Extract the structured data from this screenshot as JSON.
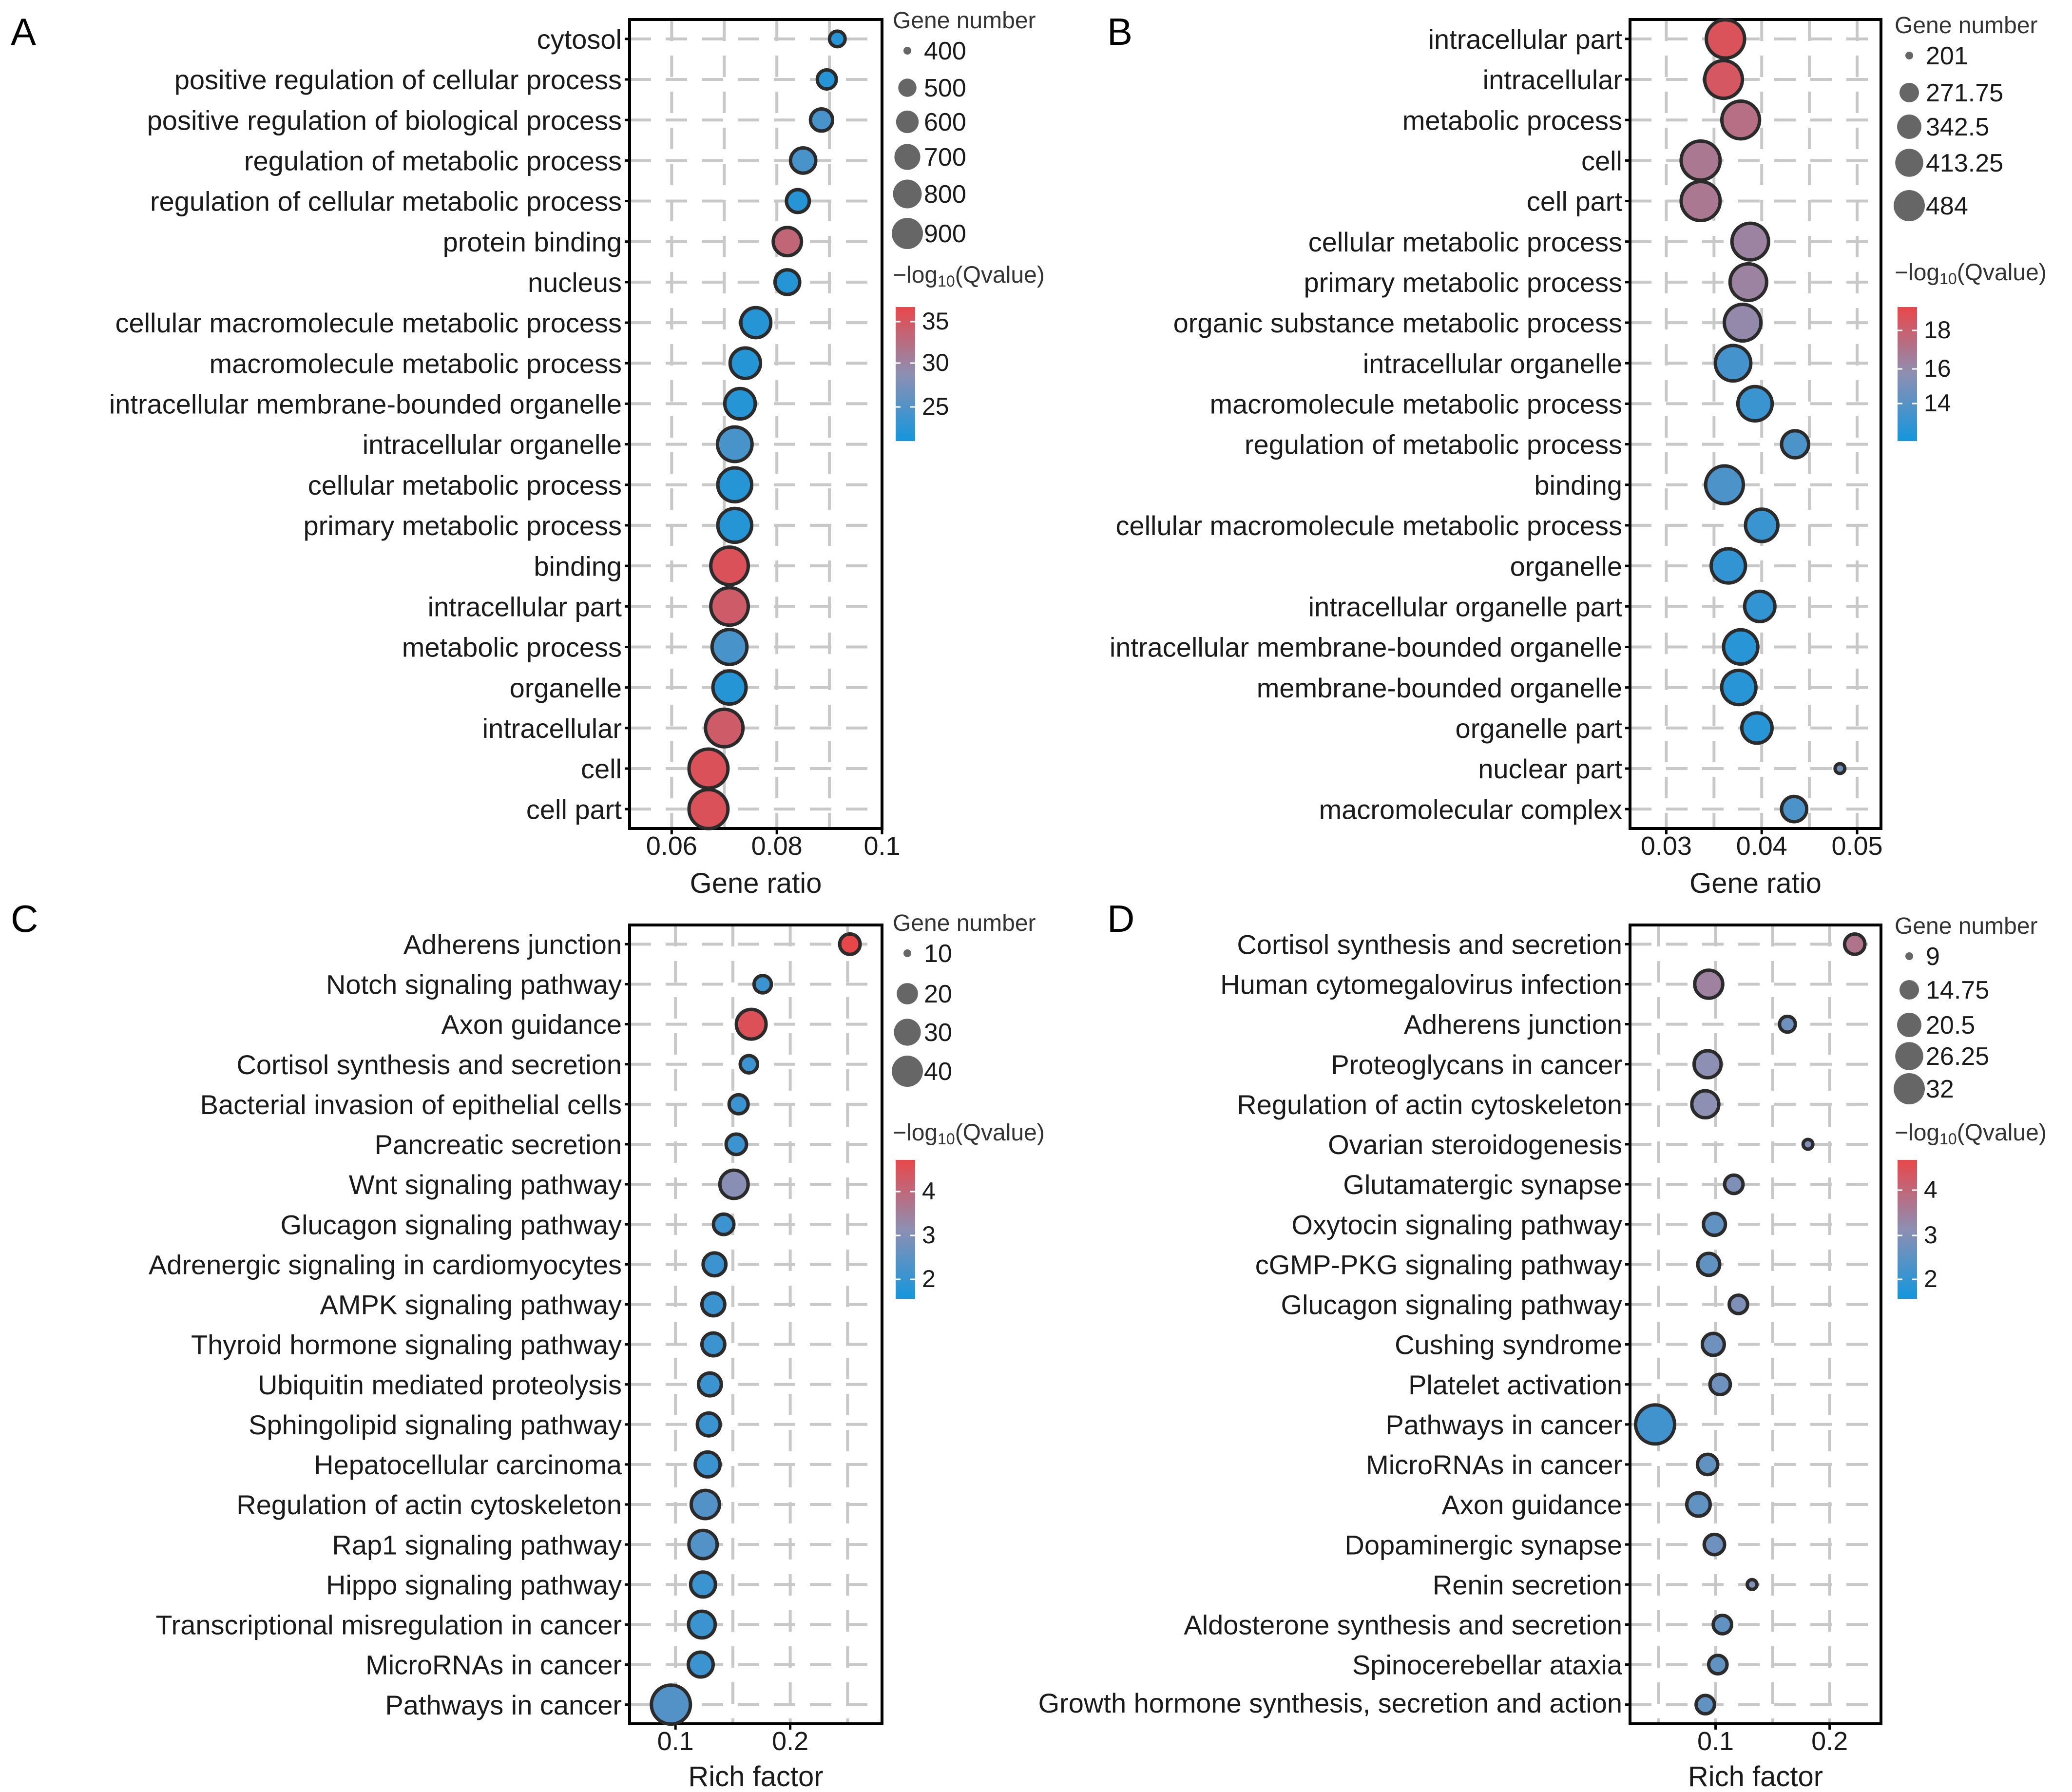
{
  "colors": {
    "low": "#1496dc",
    "mid": "#8d8fb3",
    "high": "#e8474a",
    "legend_dot": "#666666",
    "outline": "#2b2b2b"
  },
  "chart_data": [
    {
      "panel": "A",
      "type": "scatter",
      "xlabel": "Gene ratio",
      "xlim": [
        0.052,
        0.1
      ],
      "xticks": [
        0.06,
        0.08,
        0.1
      ],
      "xtick_labels": [
        "0.06",
        "0.08",
        "0.1"
      ],
      "size_legend_title": "Gene number",
      "size_legend": [
        400,
        500,
        600,
        700,
        800,
        900
      ],
      "size_range": [
        400,
        900
      ],
      "color_legend_title_prefix": "−log",
      "color_legend_title_sub": "10",
      "color_legend_title_suffix": "(Qvalue)",
      "color_range": [
        22,
        36
      ],
      "color_ticks": [
        35,
        30,
        25
      ],
      "categories": [
        "cytosol",
        "positive regulation of cellular process",
        "positive regulation of biological process",
        "regulation of metabolic process",
        "regulation of cellular metabolic process",
        "protein binding",
        "nucleus",
        "cellular macromolecule metabolic process",
        "macromolecule metabolic process",
        "intracellular membrane-bounded organelle",
        "intracellular organelle",
        "cellular metabolic process",
        "primary metabolic process",
        "binding",
        "intracellular part",
        "metabolic process",
        "organelle",
        "intracellular",
        "cell",
        "cell part"
      ],
      "x": [
        0.0915,
        0.0895,
        0.0885,
        0.085,
        0.084,
        0.082,
        0.082,
        0.076,
        0.074,
        0.073,
        0.072,
        0.072,
        0.072,
        0.071,
        0.071,
        0.071,
        0.071,
        0.07,
        0.067,
        0.067
      ],
      "size": [
        420,
        450,
        490,
        540,
        500,
        600,
        530,
        640,
        650,
        650,
        760,
        740,
        740,
        850,
        850,
        770,
        720,
        850,
        940,
        940
      ],
      "qvalue": [
        23,
        23,
        25,
        25,
        23,
        33,
        23,
        23,
        23,
        23,
        25,
        23,
        23,
        35,
        34,
        25,
        23,
        34,
        35,
        35
      ]
    },
    {
      "panel": "B",
      "type": "scatter",
      "xlabel": "Gene ratio",
      "xlim": [
        0.0262,
        0.0525
      ],
      "xticks": [
        0.03,
        0.04,
        0.05
      ],
      "xtick_labels": [
        "0.03",
        "0.04",
        "0.05"
      ],
      "size_legend_title": "Gene number",
      "size_legend": [
        201,
        271.75,
        342.5,
        413.25,
        484
      ],
      "size_range": [
        201,
        484
      ],
      "color_legend_title_prefix": "−log",
      "color_legend_title_sub": "10",
      "color_legend_title_suffix": "(Qvalue)",
      "color_range": [
        12.5,
        19
      ],
      "color_ticks": [
        18,
        16,
        14
      ],
      "categories": [
        "intracellular part",
        "intracellular",
        "metabolic process",
        "cell",
        "cell part",
        "cellular metabolic process",
        "primary metabolic process",
        "organic substance metabolic process",
        "intracellular organelle",
        "macromolecule metabolic process",
        "regulation of metabolic process",
        "binding",
        "cellular macromolecule metabolic process",
        "organelle",
        "intracellular organelle part",
        "intracellular membrane-bounded organelle",
        "membrane-bounded organelle",
        "organelle part",
        "nuclear part",
        "macromolecular complex"
      ],
      "x": [
        0.0362,
        0.036,
        0.0378,
        0.0336,
        0.0336,
        0.0388,
        0.0386,
        0.038,
        0.037,
        0.0393,
        0.0435,
        0.0361,
        0.04,
        0.0365,
        0.0398,
        0.0378,
        0.0376,
        0.0395,
        0.0482,
        0.0434
      ],
      "size": [
        470,
        460,
        460,
        484,
        484,
        440,
        440,
        440,
        420,
        400,
        300,
        460,
        370,
        400,
        340,
        400,
        400,
        340,
        201,
        280
      ],
      "qvalue": [
        18.5,
        18.3,
        17.2,
        16.8,
        16.8,
        16.3,
        16.3,
        16.0,
        13.8,
        13.5,
        14.0,
        14.0,
        13.5,
        13.3,
        13.3,
        13.0,
        13.0,
        13.0,
        15.0,
        14.0
      ]
    },
    {
      "panel": "C",
      "type": "scatter",
      "xlabel": "Rich factor",
      "xlim": [
        0.06,
        0.28
      ],
      "xticks": [
        0.1,
        0.2
      ],
      "xtick_labels": [
        "0.1",
        "0.2"
      ],
      "size_legend_title": "Gene number",
      "size_legend": [
        10,
        20,
        30,
        40
      ],
      "size_range": [
        10,
        40
      ],
      "color_legend_title_prefix": "−log",
      "color_legend_title_sub": "10",
      "color_legend_title_suffix": "(Qvalue)",
      "color_range": [
        1.5,
        4.6
      ],
      "color_ticks": [
        4,
        3,
        2
      ],
      "categories": [
        "Adherens junction",
        "Notch signaling pathway",
        "Axon guidance",
        "Cortisol synthesis and secretion",
        "Bacterial invasion of epithelial cells",
        "Pancreatic secretion",
        "Wnt signaling pathway",
        "Glucagon signaling pathway",
        "Adrenergic signaling in cardiomyocytes",
        "AMPK signaling pathway",
        "Thyroid hormone signaling pathway",
        "Ubiquitin mediated proteolysis",
        "Sphingolipid signaling pathway",
        "Hepatocellular carcinoma",
        "Regulation of actin cytoskeleton",
        "Rap1 signaling pathway",
        "Hippo signaling pathway",
        "Transcriptional misregulation in cancer",
        "MicroRNAs in cancer",
        "Pathways in cancer"
      ],
      "x": [
        0.252,
        0.176,
        0.166,
        0.164,
        0.155,
        0.153,
        0.151,
        0.142,
        0.134,
        0.133,
        0.133,
        0.13,
        0.129,
        0.128,
        0.126,
        0.124,
        0.124,
        0.123,
        0.122,
        0.096
      ],
      "size": [
        14,
        12,
        24,
        12,
        13,
        14,
        22,
        14,
        16,
        16,
        16,
        16,
        16,
        18,
        22,
        22,
        18,
        20,
        18,
        44
      ],
      "qvalue": [
        4.6,
        2.0,
        4.4,
        2.0,
        2.0,
        2.0,
        3.0,
        2.0,
        2.0,
        2.0,
        2.0,
        2.0,
        2.0,
        2.0,
        2.3,
        2.3,
        2.0,
        2.0,
        2.0,
        2.3
      ]
    },
    {
      "panel": "D",
      "type": "scatter",
      "xlabel": "Rich factor",
      "xlim": [
        0.025,
        0.245
      ],
      "xticks": [
        0.1,
        0.2
      ],
      "xtick_labels": [
        "0.1",
        "0.2"
      ],
      "size_legend_title": "Gene number",
      "size_legend": [
        9,
        14.75,
        20.5,
        26.25,
        32
      ],
      "size_range": [
        9,
        32
      ],
      "color_legend_title_prefix": "−log",
      "color_legend_title_sub": "10",
      "color_legend_title_suffix": "(Qvalue)",
      "color_range": [
        1.6,
        4.8
      ],
      "color_ticks": [
        4,
        3,
        2
      ],
      "categories": [
        "Cortisol synthesis and secretion",
        "Human cytomegalovirus infection",
        "Adherens junction",
        "Proteoglycans in cancer",
        "Regulation of actin cytoskeleton",
        "Ovarian steroidogenesis",
        "Glutamatergic synapse",
        "Oxytocin signaling pathway",
        "cGMP-PKG signaling pathway",
        "Glucagon signaling pathway",
        "Cushing syndrome",
        "Platelet activation",
        "Pathways in cancer",
        "MicroRNAs in cancer",
        "Axon guidance",
        "Dopaminergic synapse",
        "Renin secretion",
        "Aldosterone synthesis and secretion",
        "Spinocerebellar ataxia",
        "Growth hormone synthesis, secretion and action"
      ],
      "x": [
        0.222,
        0.094,
        0.163,
        0.093,
        0.091,
        0.181,
        0.116,
        0.099,
        0.094,
        0.12,
        0.098,
        0.104,
        0.047,
        0.093,
        0.085,
        0.099,
        0.132,
        0.106,
        0.102,
        0.091
      ],
      "size": [
        12,
        18,
        10,
        17,
        17,
        9,
        11,
        13,
        13,
        11,
        13,
        12,
        32,
        12,
        14,
        12,
        9,
        11,
        11,
        11
      ],
      "qvalue": [
        3.8,
        3.5,
        2.8,
        3.2,
        3.2,
        3.0,
        3.0,
        2.6,
        2.6,
        3.0,
        2.8,
        2.8,
        2.2,
        2.6,
        2.6,
        2.8,
        3.0,
        2.6,
        2.6,
        2.6
      ]
    }
  ]
}
